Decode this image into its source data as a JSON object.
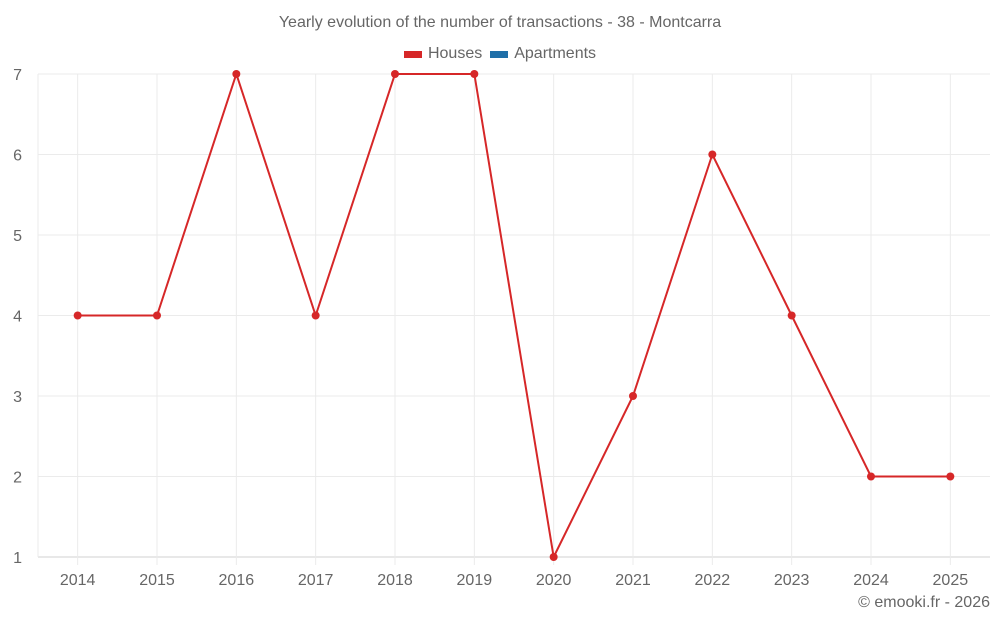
{
  "chart_data": {
    "type": "line",
    "title": "Yearly evolution of the number of transactions - 38 - Montcarra",
    "categories": [
      "2014",
      "2015",
      "2016",
      "2017",
      "2018",
      "2019",
      "2020",
      "2021",
      "2022",
      "2023",
      "2024",
      "2025"
    ],
    "series": [
      {
        "name": "Houses",
        "color": "#d62728",
        "values": [
          4,
          4,
          7,
          4,
          7,
          7,
          1,
          3,
          6,
          4,
          2,
          2
        ]
      },
      {
        "name": "Apartments",
        "color": "#1f6fa8",
        "values": []
      }
    ],
    "xlabel": "",
    "ylabel": "",
    "ylim": [
      1,
      7
    ],
    "yticks": [
      1,
      2,
      3,
      4,
      5,
      6,
      7
    ],
    "grid": true,
    "legend_position": "top"
  },
  "title": "Yearly evolution of the number of transactions - 38 - Montcarra",
  "legend": [
    {
      "label": "Houses",
      "color": "#d62728"
    },
    {
      "label": "Apartments",
      "color": "#1f6fa8"
    }
  ],
  "credit": "© emooki.fr - 2026"
}
